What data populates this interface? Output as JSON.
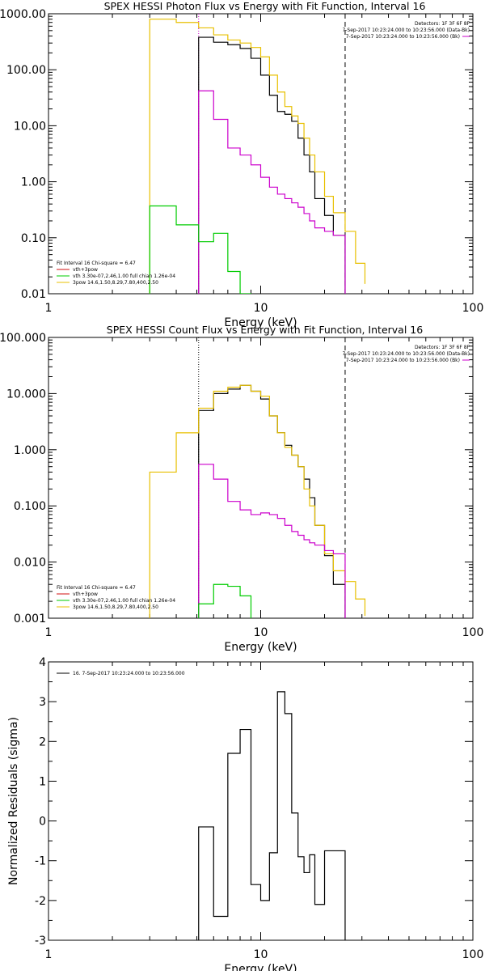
{
  "chart_data": [
    {
      "type": "line",
      "title": "SPEX HESSI Photon Flux vs Energy with Fit Function, Interval 16",
      "xlabel": "Energy (keV)",
      "ylabel": "",
      "xscale": "log",
      "yscale": "log",
      "xlim": [
        1,
        100
      ],
      "ylim": [
        0.01,
        1000
      ],
      "x_ticks": [
        1,
        10,
        100
      ],
      "x_tick_labels": [
        "1",
        "10",
        "100"
      ],
      "y_ticks": [
        0.01,
        0.1,
        1,
        10,
        100,
        1000
      ],
      "y_tick_labels": [
        "0.01",
        "0.10",
        "1.00",
        "10.00",
        "100.00",
        "1000.00"
      ],
      "vlines": [
        {
          "x": 5.1,
          "style": "dotted",
          "color": "#cc00cc"
        },
        {
          "x": 25,
          "style": "dashed",
          "color": "#000000"
        }
      ],
      "info_lines": [
        "Detectors: 1F 3F 6F 8F",
        "7-Sep-2017 10:23:24.000 to 10:23:56.000 (Data-Bk)",
        "7-Sep-2017 10:23:24.000 to 10:23:56.000 (Bk)"
      ],
      "legend": [
        {
          "text": "Fit Interval 16   Chi-square = 6.47",
          "color": ""
        },
        {
          "text": "vth+3pow",
          "color": "#d01010"
        },
        {
          "text": "vth 3.30e-07,2.46,1.00  full chian 1.26e-04",
          "color": "#00cc00"
        },
        {
          "text": "3pow 14.6,1.50,8.29,7.80,400,2.50",
          "color": "#e8c000"
        }
      ],
      "series": [
        {
          "color": "#000000",
          "edges": [
            5.1,
            6,
            7,
            8,
            9,
            10,
            11,
            12,
            13,
            14,
            15,
            16,
            17,
            18,
            20,
            22,
            25
          ],
          "values": [
            380,
            310,
            280,
            240,
            160,
            80,
            35,
            18,
            16,
            12,
            6,
            3,
            1.5,
            0.5,
            0.25,
            0.11
          ]
        },
        {
          "color": "#e8c000",
          "edges": [
            3,
            4,
            5.1,
            6,
            7,
            8,
            9,
            10,
            11,
            12,
            13,
            14,
            15,
            16,
            17,
            18,
            20,
            22,
            25,
            28,
            31
          ],
          "values": [
            800,
            700,
            560,
            420,
            340,
            300,
            250,
            170,
            80,
            40,
            22,
            15,
            11,
            6,
            3,
            1.5,
            0.55,
            0.28,
            0.13,
            0.035,
            0.015
          ]
        },
        {
          "color": "#cc00cc",
          "edges": [
            5.1,
            6,
            7,
            8,
            9,
            10,
            11,
            12,
            13,
            14,
            15,
            16,
            17,
            18,
            20,
            22,
            25
          ],
          "values": [
            42,
            13,
            4,
            3,
            2,
            1.2,
            0.8,
            0.6,
            0.5,
            0.42,
            0.35,
            0.27,
            0.2,
            0.15,
            0.13,
            0.11
          ]
        },
        {
          "color": "#00cc00",
          "edges": [
            3,
            4,
            5.1,
            6,
            7,
            8,
            9
          ],
          "values": [
            0.37,
            0.17,
            0.085,
            0.12,
            0.025,
            0.01
          ]
        }
      ]
    },
    {
      "type": "line",
      "title": "SPEX HESSI Count Flux vs Energy with Fit Function, Interval 16",
      "xlabel": "Energy (keV)",
      "ylabel": "",
      "xscale": "log",
      "yscale": "log",
      "xlim": [
        1,
        100
      ],
      "ylim": [
        0.001,
        100
      ],
      "x_ticks": [
        1,
        10,
        100
      ],
      "x_tick_labels": [
        "1",
        "10",
        "100"
      ],
      "y_ticks": [
        0.001,
        0.01,
        0.1,
        1,
        10,
        100
      ],
      "y_tick_labels": [
        "0.001",
        "0.010",
        "0.100",
        "1.000",
        "10.000",
        "100.000"
      ],
      "vlines": [
        {
          "x": 5.1,
          "style": "dotted",
          "color": "#000000"
        },
        {
          "x": 25,
          "style": "dashed",
          "color": "#000000"
        }
      ],
      "info_lines": [
        "Detectors: 1F 3F 6F 8F",
        "7-Sep-2017 10:23:24.000 to 10:23:56.000 (Data-Bk)",
        "7-Sep-2017 10:23:24.000 to 10:23:56.000 (Bk)"
      ],
      "legend": [
        {
          "text": "Fit Interval 16   Chi-square = 6.47",
          "color": ""
        },
        {
          "text": "vth+3pow",
          "color": "#d01010"
        },
        {
          "text": "vth 3.30e-07,2.46,1.00  full chian 1.26e-04",
          "color": "#00cc00"
        },
        {
          "text": "3pow 14.6,1.50,8.29,7.80,400,2.50",
          "color": "#e8c000"
        }
      ],
      "series": [
        {
          "color": "#000000",
          "edges": [
            5.1,
            6,
            7,
            8,
            9,
            10,
            11,
            12,
            13,
            14,
            15,
            16,
            17,
            18,
            20,
            22,
            25
          ],
          "values": [
            5,
            10,
            12,
            14,
            11,
            8,
            4,
            2,
            1.2,
            0.8,
            0.5,
            0.3,
            0.14,
            0.045,
            0.013,
            0.004
          ]
        },
        {
          "color": "#e8c000",
          "edges": [
            3,
            4,
            5.1,
            6,
            7,
            8,
            9,
            10,
            11,
            12,
            13,
            14,
            15,
            16,
            17,
            18,
            20,
            22,
            25,
            28,
            31
          ],
          "values": [
            0.4,
            2,
            5.5,
            11,
            13,
            14,
            11,
            9,
            4,
            2,
            1.1,
            0.8,
            0.5,
            0.2,
            0.1,
            0.045,
            0.014,
            0.007,
            0.0045,
            0.0022,
            0.0011
          ]
        },
        {
          "color": "#cc00cc",
          "edges": [
            5.1,
            6,
            7,
            8,
            9,
            10,
            11,
            12,
            13,
            14,
            15,
            16,
            17,
            18,
            20,
            22,
            25
          ],
          "values": [
            0.55,
            0.3,
            0.12,
            0.085,
            0.07,
            0.075,
            0.07,
            0.06,
            0.045,
            0.035,
            0.03,
            0.025,
            0.022,
            0.02,
            0.016,
            0.014
          ]
        },
        {
          "color": "#00cc00",
          "edges": [
            5.1,
            6,
            7,
            8,
            9
          ],
          "values": [
            0.0018,
            0.004,
            0.0037,
            0.0025
          ]
        }
      ]
    },
    {
      "type": "line",
      "title": "",
      "xlabel": "Energy (keV)",
      "ylabel": "Normalized Residuals (sigma)",
      "xscale": "log",
      "yscale": "linear",
      "xlim": [
        1,
        100
      ],
      "ylim": [
        -3,
        4
      ],
      "x_ticks": [
        1,
        10,
        100
      ],
      "x_tick_labels": [
        "1",
        "10",
        "100"
      ],
      "y_ticks": [
        -3,
        -2,
        -1,
        0,
        1,
        2,
        3,
        4
      ],
      "y_tick_labels": [
        "-3",
        "-2",
        "-1",
        "0",
        "1",
        "2",
        "3",
        "4"
      ],
      "vlines": [],
      "info_lines": [],
      "legend": [
        {
          "text": "16.  7-Sep-2017 10:23:24.000 to 10:23:56.000",
          "color": "#000000"
        }
      ],
      "series": [
        {
          "color": "#000000",
          "edges": [
            5.1,
            6,
            7,
            8,
            9,
            10,
            11,
            12,
            13,
            14,
            15,
            16,
            17,
            18,
            20,
            22,
            25
          ],
          "values": [
            -0.15,
            -2.4,
            1.7,
            2.3,
            -1.6,
            -2,
            -0.8,
            3.25,
            2.7,
            0.2,
            -0.9,
            -1.3,
            -0.85,
            -2.1,
            -0.75,
            -0.75
          ],
          "drop_to_floor": true
        }
      ]
    }
  ]
}
